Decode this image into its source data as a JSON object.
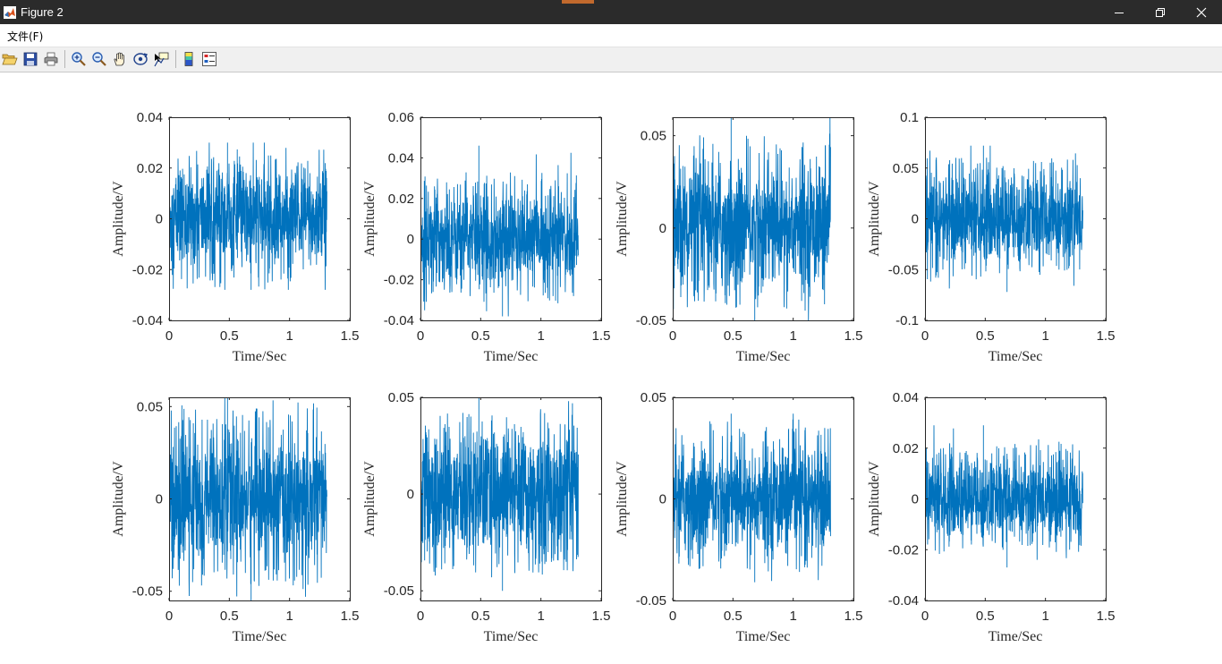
{
  "window": {
    "title": "Figure 2"
  },
  "menu": {
    "items": [
      {
        "label": "文件(F)"
      }
    ]
  },
  "toolbar": {
    "buttons": [
      {
        "name": "open-file-button",
        "icon": "folder-open-icon"
      },
      {
        "name": "save-button",
        "icon": "save-icon"
      },
      {
        "name": "print-button",
        "icon": "printer-icon"
      },
      {
        "name": "zoom-in-button",
        "icon": "zoom-in-icon"
      },
      {
        "name": "zoom-out-button",
        "icon": "zoom-out-icon"
      },
      {
        "name": "pan-button",
        "icon": "hand-icon"
      },
      {
        "name": "rotate-3d-button",
        "icon": "rotate-3d-icon"
      },
      {
        "name": "data-cursor-button",
        "icon": "data-cursor-icon"
      },
      {
        "name": "colorbar-button",
        "icon": "colorbar-icon"
      },
      {
        "name": "legend-button",
        "icon": "legend-icon"
      }
    ]
  },
  "colors": {
    "titlebar": "#2b2b2b",
    "accent": "#c1692d",
    "line": "#0072bd",
    "toolbar": "#f0f0f0"
  },
  "chart_data": [
    {
      "type": "line",
      "xlabel": "Time/Sec",
      "ylabel": "Amplitude/V",
      "xlim": [
        0,
        1.5
      ],
      "ylim": [
        -0.04,
        0.04
      ],
      "xticks": [
        "0",
        "0.5",
        "1",
        "1.5"
      ],
      "yticks": [
        "-0.04",
        "-0.02",
        "0",
        "0.02",
        "0.04"
      ],
      "duration": 1.31,
      "envelope": [
        -0.025,
        0.025
      ],
      "peaks": [
        -0.028,
        0.03
      ]
    },
    {
      "type": "line",
      "xlabel": "Time/Sec",
      "ylabel": "Amplitude/V",
      "xlim": [
        0,
        1.5
      ],
      "ylim": [
        -0.04,
        0.06
      ],
      "xticks": [
        "0",
        "0.5",
        "1",
        "1.5"
      ],
      "yticks": [
        "-0.04",
        "-0.02",
        "0",
        "0.02",
        "0.04",
        "0.06"
      ],
      "duration": 1.31,
      "envelope": [
        -0.028,
        0.03
      ],
      "peaks": [
        -0.038,
        0.046
      ]
    },
    {
      "type": "line",
      "xlabel": "Time/Sec",
      "ylabel": "Amplitude/V",
      "xlim": [
        0,
        1.5
      ],
      "ylim": [
        -0.05,
        0.06
      ],
      "xticks": [
        "0",
        "0.5",
        "1",
        "1.5"
      ],
      "yticks": [
        "-0.05",
        "0",
        "0.05"
      ],
      "duration": 1.31,
      "envelope": [
        -0.04,
        0.042
      ],
      "peaks": [
        -0.05,
        0.06
      ]
    },
    {
      "type": "line",
      "xlabel": "Time/Sec",
      "ylabel": "Amplitude/V",
      "xlim": [
        0,
        1.5
      ],
      "ylim": [
        -0.1,
        0.1
      ],
      "xticks": [
        "0",
        "0.5",
        "1",
        "1.5"
      ],
      "yticks": [
        "-0.1",
        "-0.05",
        "0",
        "0.05",
        "0.1"
      ],
      "duration": 1.31,
      "envelope": [
        -0.055,
        0.055
      ],
      "peaks": [
        -0.072,
        0.072
      ]
    },
    {
      "type": "line",
      "xlabel": "Time/Sec",
      "ylabel": "Amplitude/V",
      "xlim": [
        0,
        1.5
      ],
      "ylim": [
        -0.055,
        0.055
      ],
      "xticks": [
        "0",
        "0.5",
        "1",
        "1.5"
      ],
      "yticks": [
        "-0.05",
        "0",
        "0.05"
      ],
      "duration": 1.31,
      "envelope": [
        -0.045,
        0.045
      ],
      "peaks": [
        -0.055,
        0.055
      ]
    },
    {
      "type": "line",
      "xlabel": "Time/Sec",
      "ylabel": "Amplitude/V",
      "xlim": [
        0,
        1.5
      ],
      "ylim": [
        -0.055,
        0.05
      ],
      "xticks": [
        "0",
        "0.5",
        "1",
        "1.5"
      ],
      "yticks": [
        "-0.05",
        "0",
        "0.05"
      ],
      "duration": 1.31,
      "envelope": [
        -0.04,
        0.04
      ],
      "peaks": [
        -0.05,
        0.05
      ]
    },
    {
      "type": "line",
      "xlabel": "Time/Sec",
      "ylabel": "Amplitude/V",
      "xlim": [
        0,
        1.5
      ],
      "ylim": [
        -0.05,
        0.05
      ],
      "xticks": [
        "0",
        "0.5",
        "1",
        "1.5"
      ],
      "yticks": [
        "-0.05",
        "0",
        "0.05"
      ],
      "duration": 1.31,
      "envelope": [
        -0.032,
        0.032
      ],
      "peaks": [
        -0.041,
        0.042
      ]
    },
    {
      "type": "line",
      "xlabel": "Time/Sec",
      "ylabel": "Amplitude/V",
      "xlim": [
        0,
        1.5
      ],
      "ylim": [
        -0.04,
        0.04
      ],
      "xticks": [
        "0",
        "0.5",
        "1",
        "1.5"
      ],
      "yticks": [
        "-0.04",
        "-0.02",
        "0",
        "0.02",
        "0.04"
      ],
      "duration": 1.31,
      "envelope": [
        -0.02,
        0.02
      ],
      "peaks": [
        -0.027,
        0.029
      ]
    }
  ]
}
